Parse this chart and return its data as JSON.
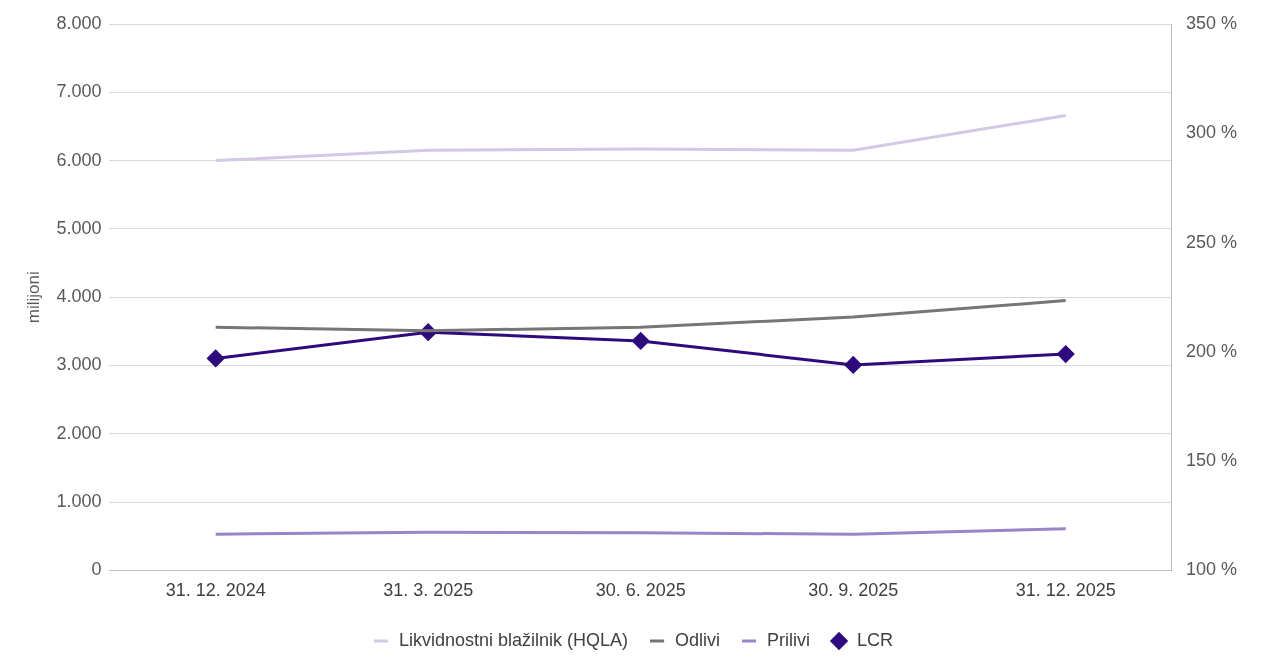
{
  "chart_data": {
    "type": "line",
    "ylabel": "milijoni",
    "categories": [
      "31. 12. 2024",
      "31. 3. 2025",
      "30. 6. 2025",
      "30. 9. 2025",
      "31. 12. 2025"
    ],
    "series": [
      {
        "name": "Likvidnostni blažilnik (HQLA)",
        "color": "#d3c9e6",
        "marker": "none",
        "values": [
          6000,
          6150,
          6170,
          6150,
          6660
        ]
      },
      {
        "name": "Odlivi",
        "color": "#767676",
        "marker": "none",
        "values": [
          3560,
          3510,
          3560,
          3710,
          3950
        ]
      },
      {
        "name": "Prilivi",
        "color": "#9b85c9",
        "marker": "none",
        "values": [
          530,
          560,
          550,
          530,
          610
        ]
      },
      {
        "name": "LCR",
        "color": "#2e0a7e",
        "marker": "diamond",
        "axis": "y2",
        "values": [
          197,
          209,
          205,
          194,
          199
        ]
      }
    ],
    "ylim": [
      0,
      8000
    ],
    "yticks": [
      {
        "value": 0,
        "label": "0"
      },
      {
        "value": 1000,
        "label": "1.000"
      },
      {
        "value": 2000,
        "label": "2.000"
      },
      {
        "value": 3000,
        "label": "3.000"
      },
      {
        "value": 4000,
        "label": "4.000"
      },
      {
        "value": 5000,
        "label": "5.000"
      },
      {
        "value": 6000,
        "label": "6.000"
      },
      {
        "value": 7000,
        "label": "7.000"
      },
      {
        "value": 8000,
        "label": "8.000"
      }
    ],
    "y2lim": [
      100,
      350
    ],
    "y2ticks": [
      {
        "value": 100,
        "label": "100 %"
      },
      {
        "value": 150,
        "label": "150 %"
      },
      {
        "value": 200,
        "label": "200 %"
      },
      {
        "value": 250,
        "label": "250 %"
      },
      {
        "value": 300,
        "label": "300 %"
      },
      {
        "value": 350,
        "label": "350 %"
      }
    ],
    "grid": "y",
    "legend": "bottom",
    "line_style": "solid"
  }
}
